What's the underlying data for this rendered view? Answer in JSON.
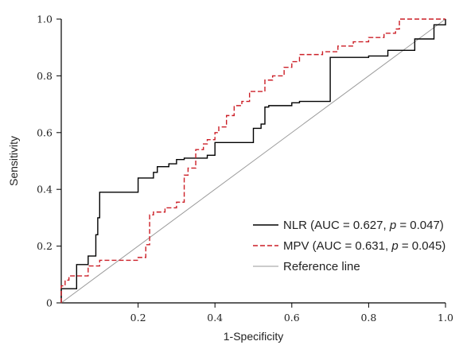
{
  "chart_data": {
    "type": "line",
    "xlabel": "1-Specificity",
    "ylabel": "Sensitivity",
    "xlim": [
      0,
      1
    ],
    "ylim": [
      0,
      1
    ],
    "x_tick_labels": [
      "0.2",
      "0.4",
      "0.6",
      "0.8",
      "1.0"
    ],
    "x_tick_values": [
      0.2,
      0.4,
      0.6,
      0.8,
      1.0
    ],
    "y_tick_labels": [
      "0",
      "0.2",
      "0.4",
      "0.6",
      "0.8",
      "1.0"
    ],
    "y_tick_values": [
      0,
      0.2,
      0.4,
      0.6,
      0.8,
      1.0
    ],
    "grid": false,
    "legend_position": "bottom-right",
    "series": [
      {
        "name": "NLR (AUC = 0.627, p = 0.047)",
        "name_parts": [
          "NLR (AUC = 0.627, ",
          "p",
          " = 0.047)"
        ],
        "color": "#000000",
        "dash": "solid",
        "step": true,
        "x": [
          0,
          0,
          0.04,
          0.04,
          0.07,
          0.07,
          0.09,
          0.095,
          0.1,
          0.2,
          0.24,
          0.24,
          0.25,
          0.28,
          0.3,
          0.32,
          0.37,
          0.38,
          0.4,
          0.5,
          0.52,
          0.53,
          0.54,
          0.6,
          0.62,
          0.7,
          0.8,
          0.85,
          0.92,
          0.92,
          0.97,
          1.0
        ],
        "y": [
          0,
          0.05,
          0.07,
          0.135,
          0.135,
          0.165,
          0.24,
          0.3,
          0.39,
          0.44,
          0.44,
          0.46,
          0.48,
          0.49,
          0.505,
          0.51,
          0.51,
          0.52,
          0.565,
          0.615,
          0.63,
          0.69,
          0.695,
          0.705,
          0.71,
          0.865,
          0.87,
          0.89,
          0.89,
          0.93,
          0.98,
          1.0
        ]
      },
      {
        "name": "MPV (AUC = 0.631, p = 0.045)",
        "name_parts": [
          "MPV (AUC = 0.631, ",
          "p",
          " = 0.045)"
        ],
        "color": "#cc1f27",
        "dash": "dashed",
        "step": true,
        "x": [
          0,
          0,
          0.01,
          0.02,
          0.05,
          0.07,
          0.1,
          0.2,
          0.22,
          0.23,
          0.24,
          0.27,
          0.3,
          0.32,
          0.33,
          0.35,
          0.37,
          0.38,
          0.4,
          0.41,
          0.43,
          0.45,
          0.47,
          0.49,
          0.53,
          0.55,
          0.58,
          0.6,
          0.62,
          0.68,
          0.72,
          0.76,
          0.8,
          0.84,
          0.87,
          0.88,
          0.92,
          1.0
        ],
        "y": [
          0,
          0.06,
          0.08,
          0.095,
          0.095,
          0.13,
          0.15,
          0.16,
          0.205,
          0.31,
          0.32,
          0.335,
          0.355,
          0.45,
          0.475,
          0.54,
          0.56,
          0.575,
          0.6,
          0.62,
          0.66,
          0.695,
          0.71,
          0.745,
          0.785,
          0.8,
          0.83,
          0.85,
          0.875,
          0.885,
          0.905,
          0.92,
          0.935,
          0.95,
          0.965,
          1.0,
          1.0,
          1.0
        ]
      },
      {
        "name": "Reference line",
        "color": "#9a9a9a",
        "dash": "solid",
        "step": false,
        "x": [
          0,
          1
        ],
        "y": [
          0,
          1
        ]
      }
    ]
  }
}
